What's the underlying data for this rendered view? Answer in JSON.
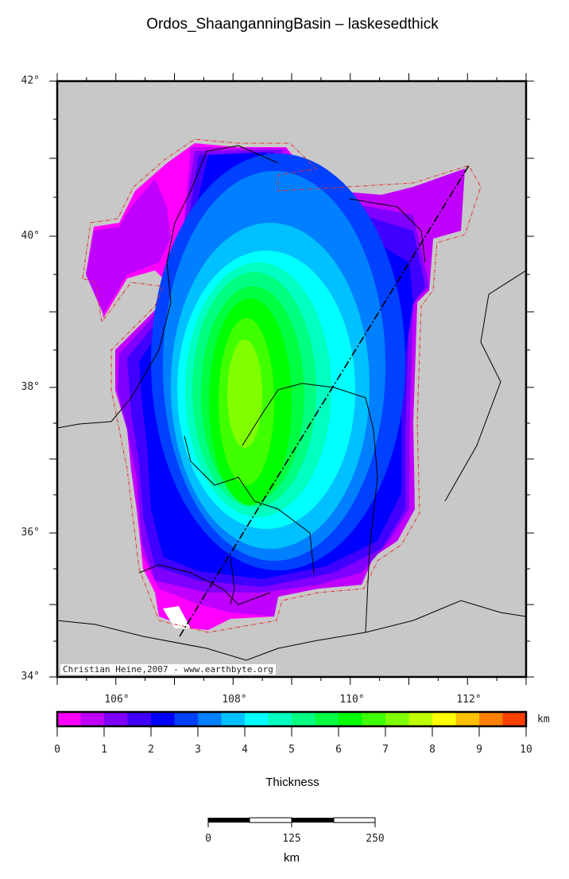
{
  "title": "Ordos_ShaanganningBasin – laskesedthick",
  "map": {
    "lon_labels": [
      "106°",
      "108°",
      "110°",
      "112°"
    ],
    "lat_labels": [
      "42°",
      "40°",
      "38°",
      "36°",
      "34°"
    ],
    "lon_range": [
      105,
      113
    ],
    "lat_range": [
      34,
      42
    ],
    "land_color": "#c8c8c8",
    "credit": "Christian Heine,2007 - www.earthbyte.org"
  },
  "colorbar": {
    "ticks": [
      "0",
      "1",
      "2",
      "3",
      "4",
      "5",
      "6",
      "7",
      "8",
      "9",
      "10"
    ],
    "unit": "km",
    "label": "Thickness",
    "range": [
      0,
      10
    ],
    "colors": [
      "#ff00ff",
      "#c000ff",
      "#8000ff",
      "#4000ff",
      "#0000ff",
      "#0040ff",
      "#0080ff",
      "#00c0ff",
      "#00ffff",
      "#00ffc0",
      "#00ff80",
      "#00ff40",
      "#00ff00",
      "#40ff00",
      "#80ff00",
      "#c0ff00",
      "#ffff00",
      "#ffc000",
      "#ff8000",
      "#ff4000"
    ]
  },
  "scalebar": {
    "labels": [
      "0",
      "125",
      "250"
    ],
    "unit": "km"
  }
}
